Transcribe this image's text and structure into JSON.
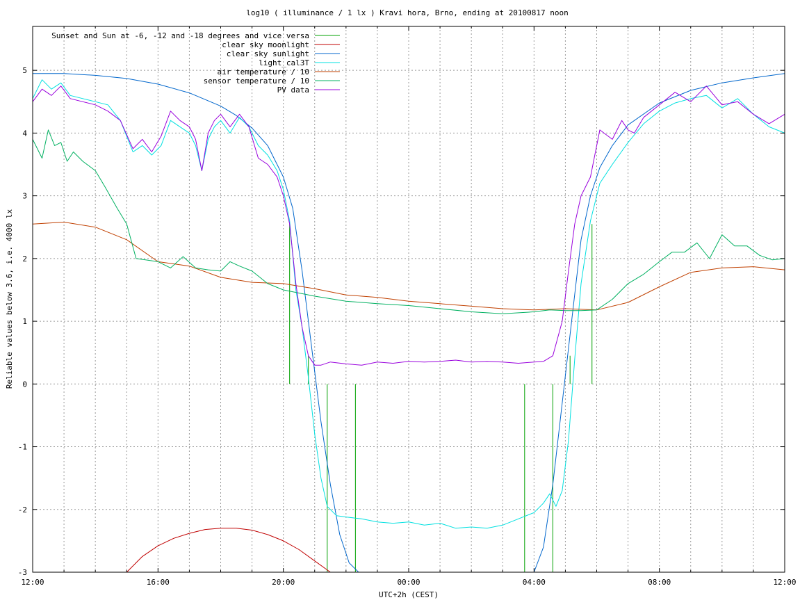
{
  "chart_data": {
    "type": "line",
    "title": "log10 ( illuminance / 1 lx ) Kravi hora, Brno, ending at 20100817 noon",
    "xlabel": "UTC+2h (CEST)",
    "ylabel": "Reliable values below 3.6, i.e. 4000 lx",
    "xlim": [
      12,
      36
    ],
    "ylim": [
      -3,
      5.7
    ],
    "x_ticks": [
      {
        "value": 12,
        "label": "12:00"
      },
      {
        "value": 16,
        "label": "16:00"
      },
      {
        "value": 20,
        "label": "20:00"
      },
      {
        "value": 24,
        "label": "00:00"
      },
      {
        "value": 28,
        "label": "04:00"
      },
      {
        "value": 32,
        "label": "08:00"
      },
      {
        "value": 36,
        "label": "12:00"
      }
    ],
    "x_minor_grid": [
      13,
      14,
      15,
      17,
      18,
      19,
      21,
      22,
      23,
      25,
      26,
      27,
      29,
      30,
      31,
      33,
      34,
      35
    ],
    "y_ticks": [
      -3,
      -2,
      -1,
      0,
      1,
      2,
      3,
      4,
      5
    ],
    "grid": true,
    "legend_position": "top-left",
    "series": [
      {
        "name": "Sunset and Sun at -6, -12 and -18 degrees and vice versa",
        "color": "#00a000",
        "style": "impulses",
        "baseline": 0,
        "x": [
          20.2,
          20.8,
          21.4,
          22.3,
          27.7,
          28.6,
          29.15,
          29.85
        ],
        "values": [
          2.55,
          0.45,
          -3.0,
          -3.0,
          -3.0,
          -3.0,
          0.45,
          2.55
        ]
      },
      {
        "name": "clear sky moonlight",
        "color": "#c00000",
        "style": "line",
        "x": [
          15.0,
          15.5,
          16.0,
          16.5,
          17.0,
          17.5,
          18.0,
          18.5,
          19.0,
          19.5,
          20.0,
          20.5,
          21.0,
          21.5
        ],
        "values": [
          -3.0,
          -2.75,
          -2.58,
          -2.46,
          -2.38,
          -2.32,
          -2.3,
          -2.3,
          -2.33,
          -2.4,
          -2.5,
          -2.64,
          -2.82,
          -3.0
        ]
      },
      {
        "name": "clear sky sunlight",
        "color": "#0066cc",
        "style": "line",
        "x": [
          12.0,
          13.0,
          14.0,
          15.0,
          16.0,
          17.0,
          18.0,
          18.5,
          19.0,
          19.5,
          20.0,
          20.3,
          20.6,
          20.9,
          21.2,
          21.5,
          21.8,
          22.1,
          22.4,
          28.0,
          28.3,
          28.6,
          28.9,
          29.2,
          29.5,
          29.8,
          30.1,
          30.5,
          31.0,
          32.0,
          33.0,
          34.0,
          35.0,
          36.0
        ],
        "values": [
          4.95,
          4.95,
          4.92,
          4.87,
          4.78,
          4.64,
          4.43,
          4.28,
          4.08,
          3.8,
          3.3,
          2.8,
          1.8,
          0.6,
          -0.6,
          -1.6,
          -2.4,
          -2.85,
          -3.0,
          -3.0,
          -2.6,
          -1.6,
          -0.3,
          1.0,
          2.3,
          3.0,
          3.45,
          3.8,
          4.13,
          4.48,
          4.68,
          4.8,
          4.88,
          4.95
        ]
      },
      {
        "name": "light_cal3T",
        "color": "#00e0e0",
        "style": "line",
        "x": [
          12.0,
          12.3,
          12.6,
          12.9,
          13.2,
          13.6,
          14.0,
          14.4,
          14.8,
          15.2,
          15.5,
          15.8,
          16.1,
          16.4,
          16.7,
          17.0,
          17.2,
          17.4,
          17.6,
          17.8,
          18.0,
          18.3,
          18.6,
          18.9,
          19.2,
          19.5,
          19.8,
          20.0,
          20.2,
          20.4,
          20.6,
          20.8,
          21.0,
          21.2,
          21.4,
          21.7,
          22.0,
          22.5,
          23.0,
          23.5,
          24.0,
          24.5,
          25.0,
          25.5,
          26.0,
          26.5,
          27.0,
          27.5,
          28.0,
          28.3,
          28.5,
          28.7,
          28.9,
          29.1,
          29.3,
          29.5,
          29.8,
          30.1,
          30.5,
          31.0,
          31.5,
          32.0,
          32.5,
          33.0,
          33.5,
          34.0,
          34.5,
          35.0,
          35.5,
          36.0
        ],
        "values": [
          4.55,
          4.85,
          4.7,
          4.8,
          4.6,
          4.55,
          4.5,
          4.45,
          4.2,
          3.7,
          3.8,
          3.65,
          3.8,
          4.2,
          4.1,
          4.0,
          3.8,
          3.4,
          3.9,
          4.1,
          4.2,
          4.0,
          4.25,
          4.1,
          3.8,
          3.65,
          3.4,
          3.1,
          2.6,
          1.5,
          0.9,
          0.1,
          -0.8,
          -1.5,
          -1.95,
          -2.1,
          -2.12,
          -2.15,
          -2.2,
          -2.22,
          -2.2,
          -2.25,
          -2.22,
          -2.3,
          -2.28,
          -2.3,
          -2.25,
          -2.15,
          -2.05,
          -1.9,
          -1.75,
          -1.95,
          -1.7,
          -0.9,
          0.4,
          1.6,
          2.6,
          3.2,
          3.5,
          3.85,
          4.15,
          4.35,
          4.48,
          4.55,
          4.6,
          4.4,
          4.55,
          4.3,
          4.1,
          4.0
        ]
      },
      {
        "name": "air temperature / 10",
        "color": "#c04000",
        "style": "line",
        "x": [
          12.0,
          13.0,
          14.0,
          15.0,
          16.0,
          17.0,
          18.0,
          19.0,
          20.0,
          21.0,
          22.0,
          23.0,
          24.0,
          25.0,
          26.0,
          27.0,
          28.0,
          29.0,
          30.0,
          31.0,
          32.0,
          33.0,
          34.0,
          35.0,
          36.0
        ],
        "values": [
          2.55,
          2.58,
          2.5,
          2.3,
          1.95,
          1.88,
          1.7,
          1.62,
          1.6,
          1.52,
          1.42,
          1.38,
          1.32,
          1.28,
          1.24,
          1.2,
          1.18,
          1.2,
          1.18,
          1.3,
          1.55,
          1.78,
          1.85,
          1.87,
          1.82
        ]
      },
      {
        "name": "sensor temperature / 10",
        "color": "#00b060",
        "style": "line",
        "x": [
          12.0,
          12.3,
          12.5,
          12.7,
          12.9,
          13.1,
          13.3,
          13.6,
          14.0,
          14.3,
          14.7,
          15.0,
          15.3,
          15.6,
          16.0,
          16.4,
          16.8,
          17.2,
          17.6,
          18.0,
          18.3,
          18.6,
          19.0,
          19.5,
          20.0,
          21.0,
          22.0,
          23.0,
          24.0,
          25.0,
          26.0,
          27.0,
          28.0,
          28.5,
          29.0,
          29.5,
          30.0,
          30.5,
          31.0,
          31.5,
          32.0,
          32.4,
          32.8,
          33.2,
          33.6,
          34.0,
          34.4,
          34.8,
          35.2,
          35.6,
          36.0
        ],
        "values": [
          3.9,
          3.6,
          4.05,
          3.8,
          3.85,
          3.55,
          3.7,
          3.55,
          3.4,
          3.15,
          2.8,
          2.55,
          2.0,
          1.98,
          1.95,
          1.85,
          2.03,
          1.85,
          1.82,
          1.8,
          1.95,
          1.88,
          1.8,
          1.6,
          1.5,
          1.4,
          1.32,
          1.28,
          1.25,
          1.2,
          1.15,
          1.12,
          1.15,
          1.18,
          1.17,
          1.17,
          1.18,
          1.35,
          1.6,
          1.75,
          1.95,
          2.1,
          2.1,
          2.25,
          2.0,
          2.38,
          2.2,
          2.2,
          2.05,
          1.98,
          2.0
        ]
      },
      {
        "name": "PV data",
        "color": "#9900dd",
        "style": "line",
        "x": [
          12.0,
          12.3,
          12.6,
          12.9,
          13.2,
          13.6,
          14.0,
          14.4,
          14.8,
          15.2,
          15.5,
          15.8,
          16.1,
          16.4,
          16.7,
          17.0,
          17.2,
          17.4,
          17.6,
          17.8,
          18.0,
          18.3,
          18.6,
          18.9,
          19.2,
          19.5,
          19.8,
          20.0,
          20.2,
          20.4,
          20.6,
          20.8,
          21.0,
          21.2,
          21.5,
          22.0,
          22.5,
          23.0,
          23.5,
          24.0,
          24.5,
          25.0,
          25.5,
          26.0,
          26.5,
          27.0,
          27.5,
          28.0,
          28.3,
          28.6,
          28.9,
          29.1,
          29.3,
          29.5,
          29.8,
          30.1,
          30.5,
          30.8,
          31.0,
          31.2,
          31.5,
          32.0,
          32.5,
          33.0,
          33.5,
          34.0,
          34.5,
          35.0,
          35.5,
          36.0
        ],
        "values": [
          4.5,
          4.7,
          4.6,
          4.75,
          4.55,
          4.5,
          4.45,
          4.35,
          4.2,
          3.75,
          3.9,
          3.7,
          3.95,
          4.35,
          4.2,
          4.1,
          3.9,
          3.4,
          4.0,
          4.2,
          4.3,
          4.1,
          4.3,
          4.1,
          3.6,
          3.5,
          3.3,
          3.0,
          2.55,
          1.6,
          0.9,
          0.45,
          0.3,
          0.3,
          0.35,
          0.32,
          0.3,
          0.35,
          0.33,
          0.36,
          0.35,
          0.36,
          0.38,
          0.35,
          0.36,
          0.35,
          0.33,
          0.35,
          0.36,
          0.45,
          1.0,
          1.8,
          2.55,
          3.0,
          3.3,
          4.05,
          3.9,
          4.2,
          4.05,
          4.0,
          4.25,
          4.45,
          4.65,
          4.5,
          4.75,
          4.45,
          4.5,
          4.3,
          4.15,
          4.3
        ]
      }
    ]
  }
}
